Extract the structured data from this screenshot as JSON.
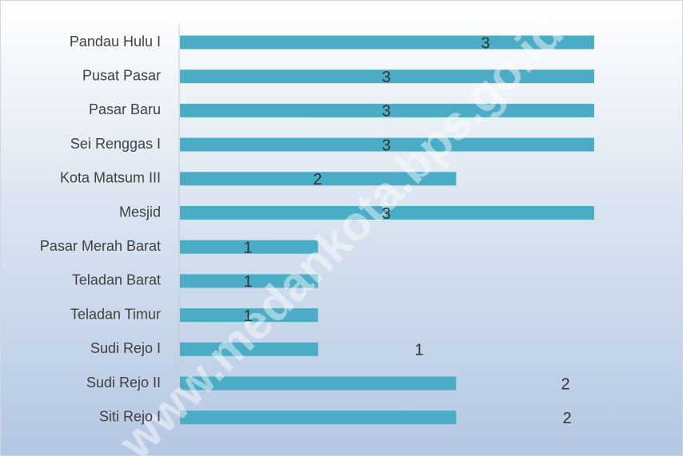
{
  "chart_data": {
    "type": "bar",
    "orientation": "horizontal",
    "categories": [
      "Pandau Hulu I",
      "Pusat Pasar",
      "Pasar Baru",
      "Sei Renggas I",
      "Kota Matsum III",
      "Mesjid",
      "Pasar Merah Barat",
      "Teladan Barat",
      "Teladan Timur",
      "Sudi Rejo I",
      "Sudi Rejo II",
      "Siti Rejo I"
    ],
    "values": [
      3,
      3,
      3,
      3,
      2,
      3,
      1,
      1,
      1,
      1,
      2,
      2
    ],
    "color": "#4bacc6",
    "xlim": [
      0,
      3
    ],
    "watermark": "www.medankota.bps.go.id"
  }
}
